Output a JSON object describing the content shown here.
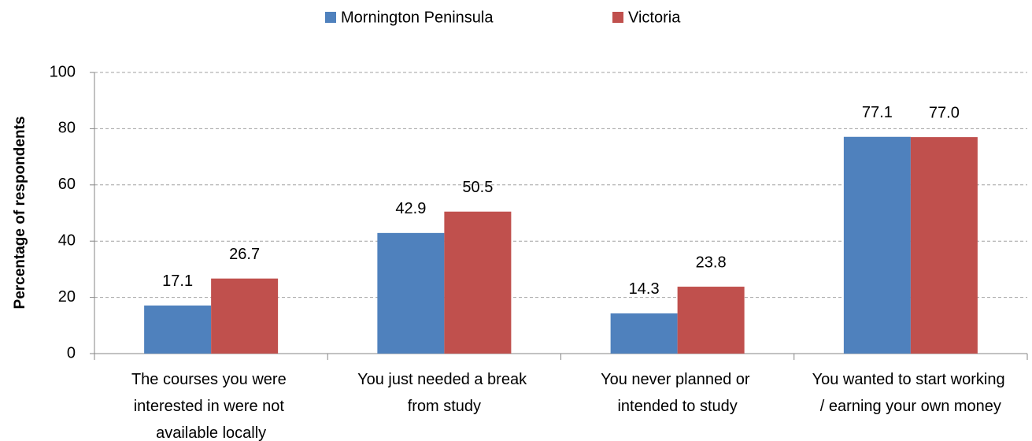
{
  "chart_data": {
    "type": "bar",
    "y_label": "Percentage of respondents",
    "categories": [
      "The courses you were interested in were not available locally",
      "You just needed a break from study",
      "You never planned or intended to study",
      "You wanted to start working / earning your own money"
    ],
    "series": [
      {
        "name": "Mornington Peninsula",
        "color": "#4f81bd",
        "values": [
          17.1,
          42.9,
          14.3,
          77.1
        ],
        "value_labels": [
          "17.1",
          "42.9",
          "14.3",
          "77.1"
        ]
      },
      {
        "name": "Victoria",
        "color": "#c0504d",
        "values": [
          26.7,
          50.5,
          23.8,
          77
        ],
        "value_labels": [
          "26.7",
          "50.5",
          "23.8",
          "77.0"
        ]
      }
    ],
    "ylim": [
      0,
      100
    ],
    "yticks": [
      0,
      20,
      40,
      60,
      80,
      100
    ],
    "grid": true,
    "legend": "top"
  }
}
